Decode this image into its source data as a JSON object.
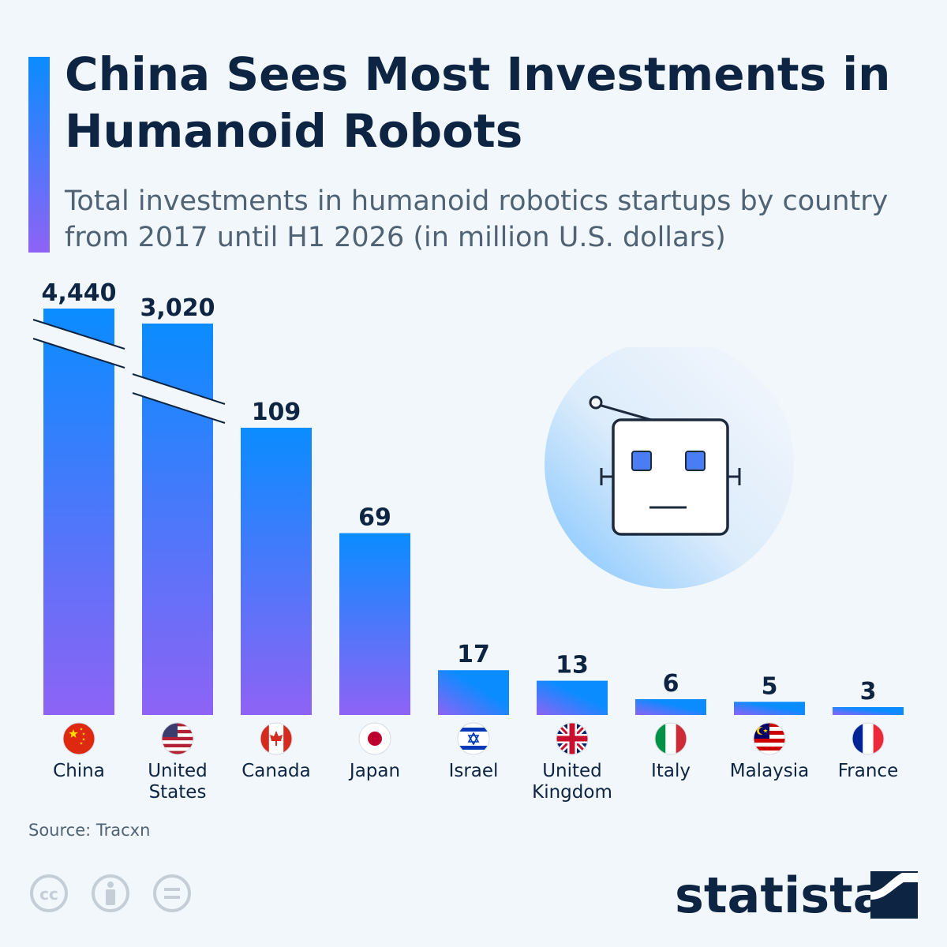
{
  "header": {
    "title": "China Sees Most Investments in Humanoid Robots",
    "subtitle": "Total investments in humanoid robotics startups by country from 2017 until H1 2026 (in million U.S. dollars)"
  },
  "footer": {
    "source": "Source: Tracxn",
    "brand": "statista"
  },
  "colors": {
    "title": "#0d2542",
    "bar_top": "#0a8cff",
    "bar_bottom": "#8e63f5",
    "background": "#f2f7fb"
  },
  "chart_data": {
    "type": "bar",
    "title": "China Sees Most Investments in Humanoid Robots",
    "subtitle": "Total investments in humanoid robotics startups by country from 2017 until H1 2026 (in million U.S. dollars)",
    "categories": [
      "China",
      "United States",
      "Canada",
      "Japan",
      "Israel",
      "United Kingdom",
      "Italy",
      "Malaysia",
      "France"
    ],
    "values": [
      4440,
      3020,
      109,
      69,
      17,
      13,
      6,
      5,
      3
    ],
    "value_labels": [
      "4,440",
      "3,020",
      "109",
      "69",
      "17",
      "13",
      "6",
      "5",
      "3"
    ],
    "category_label_lines": [
      [
        "China"
      ],
      [
        "United",
        "States"
      ],
      [
        "Canada"
      ],
      [
        "Japan"
      ],
      [
        "Israel"
      ],
      [
        "United",
        "Kingdom"
      ],
      [
        "Italy"
      ],
      [
        "Malaysia"
      ],
      [
        "France"
      ]
    ],
    "flags": [
      "flag-china-icon",
      "flag-united-states-icon",
      "flag-canada-icon",
      "flag-japan-icon",
      "flag-israel-icon",
      "flag-united-kingdom-icon",
      "flag-italy-icon",
      "flag-malaysia-icon",
      "flag-france-icon"
    ],
    "axis_break": "broken bars for values above 109",
    "ylim": [
      0,
      140
    ],
    "grid": false,
    "legend": "none"
  }
}
